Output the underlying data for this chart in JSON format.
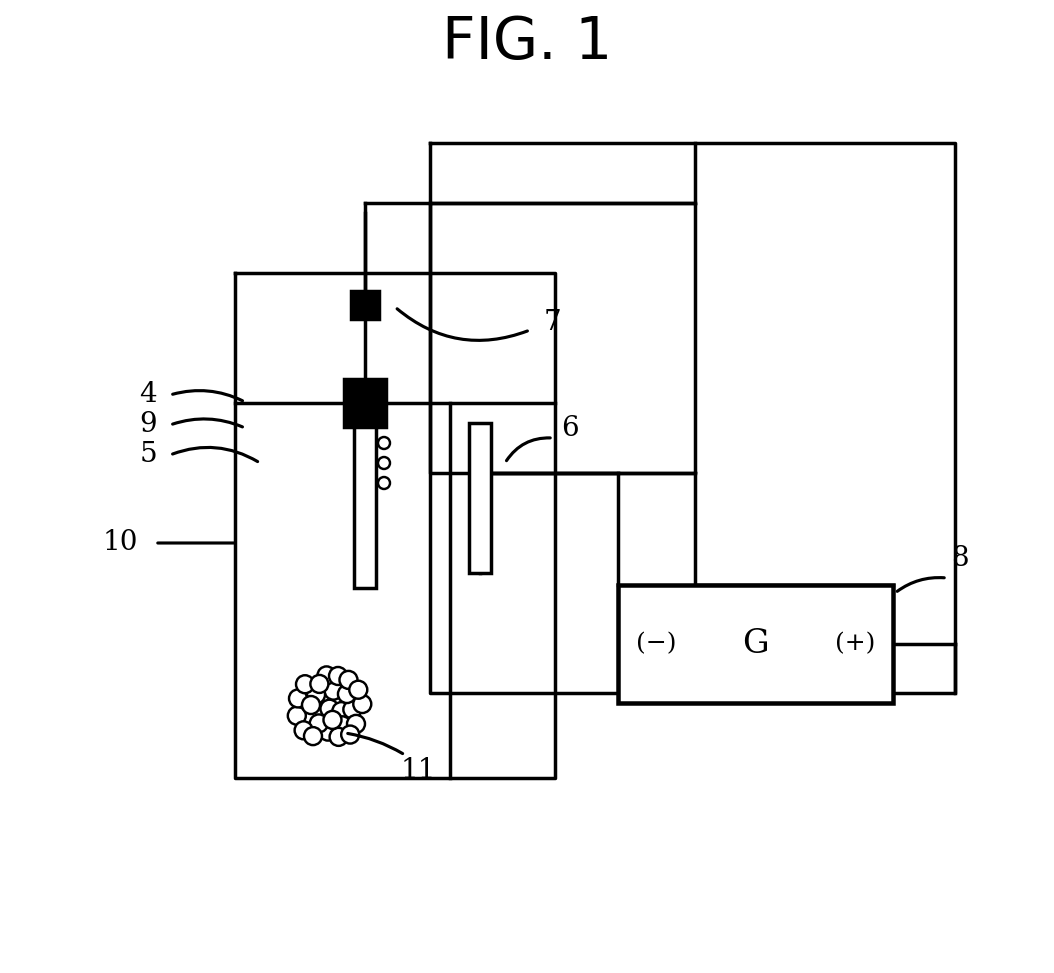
{
  "title": "FIG. 1",
  "bg_color": "#ffffff",
  "line_color": "#000000",
  "lw": 2.5
}
